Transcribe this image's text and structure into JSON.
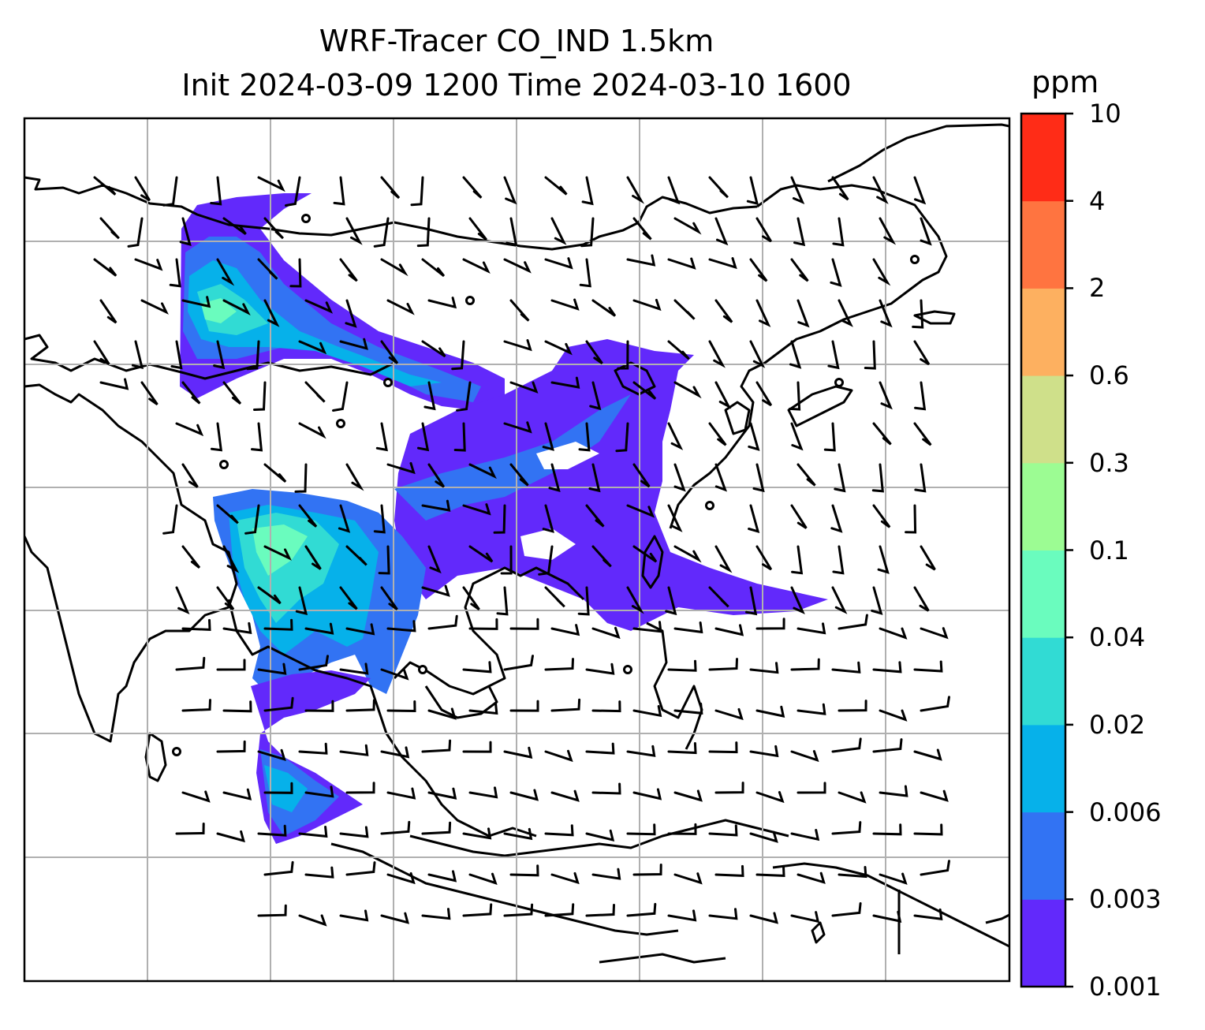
{
  "title": {
    "line1": "WRF-Tracer CO_IND 1.5km",
    "line2": "Init 2024-03-09 1200 Time 2024-03-10 1600"
  },
  "colorbar": {
    "unit": "ppm",
    "ticks": [
      "0.001",
      "0.003",
      "0.006",
      "0.02",
      "0.04",
      "0.1",
      "0.3",
      "0.6",
      "2",
      "4",
      "10"
    ],
    "colors": [
      "#6229fb",
      "#3273f3",
      "#06b1ea",
      "#31dbd4",
      "#6afcbe",
      "#9cfc93",
      "#cfe08a",
      "#fdb060",
      "#ff7440",
      "#ff2c17"
    ]
  },
  "map": {
    "land_outline_color": "#000000",
    "gridline_color": "#b0b0b0",
    "wind_barb_color": "#000000",
    "background": "#ffffff"
  }
}
